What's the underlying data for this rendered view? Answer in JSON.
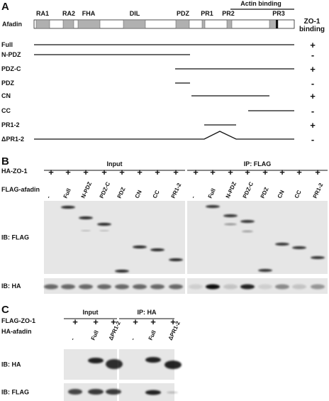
{
  "panel_a": {
    "label": "A",
    "protein": "Afadin",
    "domains": [
      "RA1",
      "RA2",
      "FHA",
      "DIL",
      "PDZ",
      "PR1",
      "PR2",
      "PR3"
    ],
    "actin_binding": "Actin binding",
    "binding_header": [
      "ZO-1",
      "binding"
    ],
    "constructs": [
      {
        "name": "Full",
        "binding": "+"
      },
      {
        "name": "N-PDZ",
        "binding": "-"
      },
      {
        "name": "PDZ-C",
        "binding": "+"
      },
      {
        "name": "PDZ",
        "binding": "-"
      },
      {
        "name": "CN",
        "binding": "+"
      },
      {
        "name": "CC",
        "binding": "-"
      },
      {
        "name": "PR1-2",
        "binding": "+"
      },
      {
        "name": "ΔPR1-2",
        "binding": "-"
      }
    ]
  },
  "panel_b": {
    "label": "B",
    "groups": [
      "Input",
      "IP: FLAG"
    ],
    "row1_label": "HA-ZO-1",
    "row1_marks": [
      "+",
      "+",
      "+",
      "+",
      "+",
      "+",
      "+",
      "+",
      "+",
      "+",
      "+",
      "+",
      "+",
      "+",
      "+",
      "+"
    ],
    "row2_label": "FLAG-afadin",
    "lanes": [
      "-",
      "Full",
      "N-PDZ",
      "PDZ-C",
      "PDZ",
      "CN",
      "CC",
      "PR1-2",
      "-",
      "Full",
      "N-PDZ",
      "PDZ-C",
      "PDZ",
      "CN",
      "CC",
      "PR1-2"
    ],
    "blots": [
      "IB: FLAG",
      "IB: HA"
    ]
  },
  "panel_c": {
    "label": "C",
    "groups": [
      "Input",
      "IP: HA"
    ],
    "row1_label": "FLAG-ZO-1",
    "row1_marks": [
      "+",
      "+",
      "+",
      "+",
      "+",
      "+"
    ],
    "row2_label": "HA-afadin",
    "lanes": [
      "-",
      "Full",
      "ΔPR1-2",
      "-",
      "Full",
      "ΔPR1-2"
    ],
    "blots": [
      "IB: HA",
      "IB: FLAG"
    ]
  }
}
